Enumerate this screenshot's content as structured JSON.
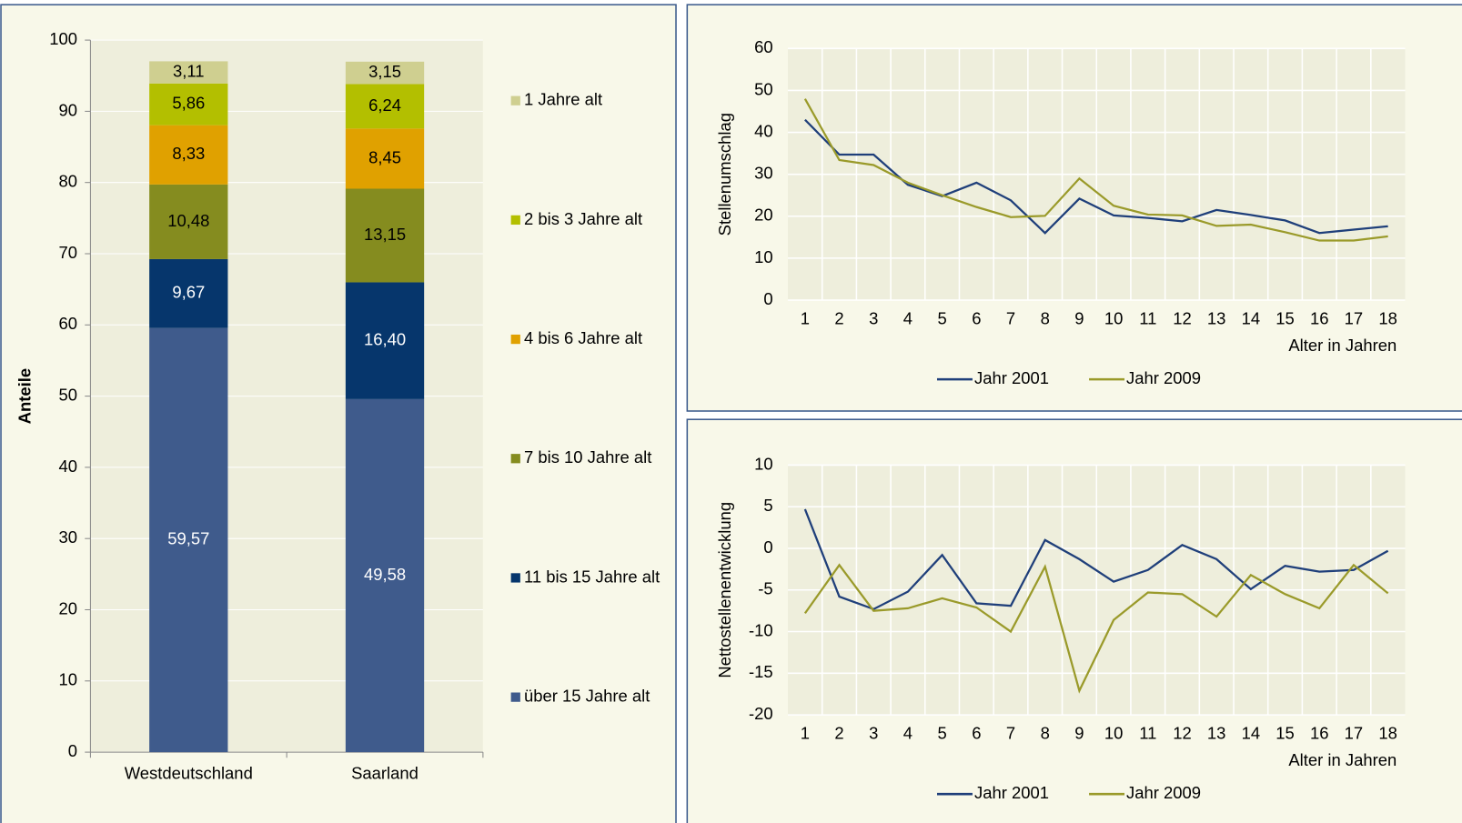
{
  "chart_data": [
    {
      "type": "bar",
      "stacked": true,
      "y_label": "Anteile",
      "categories": [
        "Westdeutschland",
        "Saarland"
      ],
      "series": [
        {
          "name": "über 15 Jahre alt",
          "color": "#3f5b8c",
          "values": [
            59.57,
            49.58
          ],
          "value_labels": [
            "59,57",
            "49,58"
          ]
        },
        {
          "name": "11 bis 15 Jahre alt",
          "color": "#06366c",
          "values": [
            9.67,
            16.4
          ],
          "value_labels": [
            "9,67",
            "16,40"
          ]
        },
        {
          "name": "7 bis 10 Jahre alt",
          "color": "#858c1f",
          "values": [
            10.48,
            13.15
          ],
          "value_labels": [
            "10,48",
            "13,15"
          ]
        },
        {
          "name": "4 bis 6 Jahre alt",
          "color": "#e0a100",
          "values": [
            8.33,
            8.45
          ],
          "value_labels": [
            "8,33",
            "8,45"
          ]
        },
        {
          "name": "2 bis 3 Jahre alt",
          "color": "#b3bf00",
          "values": [
            5.86,
            6.24
          ],
          "value_labels": [
            "5,86",
            "6,24"
          ]
        },
        {
          "name": "1 Jahre alt",
          "color": "#cfcf90",
          "values": [
            3.11,
            3.15
          ],
          "value_labels": [
            "3,11",
            "3,15"
          ]
        }
      ],
      "ylim": [
        0,
        100
      ],
      "yticks": [
        0,
        10,
        20,
        30,
        40,
        50,
        60,
        70,
        80,
        90,
        100
      ],
      "grid": true
    },
    {
      "type": "line",
      "y_label": "Stellenumschlag",
      "x_label": "Alter in Jahren",
      "x": [
        1,
        2,
        3,
        4,
        5,
        6,
        7,
        8,
        9,
        10,
        11,
        12,
        13,
        14,
        15,
        16,
        17,
        18
      ],
      "xlim": [
        0.5,
        18.5
      ],
      "series": [
        {
          "name": "Jahr 2001",
          "color": "#1f3f7a",
          "values": [
            43,
            34.7,
            34.7,
            27.5,
            24.8,
            28,
            23.8,
            16,
            24.2,
            20.2,
            19.6,
            18.8,
            21.5,
            20.3,
            19,
            16,
            16.8,
            17.6
          ]
        },
        {
          "name": "Jahr 2009",
          "color": "#9a9a2a",
          "values": [
            48,
            33.4,
            32.2,
            28,
            25,
            22.2,
            19.8,
            20.1,
            29,
            22.5,
            20.4,
            20.2,
            17.7,
            18,
            16.2,
            14.2,
            14.2,
            15.2
          ]
        }
      ],
      "ylim": [
        0,
        60
      ],
      "yticks": [
        0,
        10,
        20,
        30,
        40,
        50,
        60
      ],
      "grid": true
    },
    {
      "type": "line",
      "y_label": "Nettostellenentwicklung",
      "x_label": "Alter in Jahren",
      "x": [
        1,
        2,
        3,
        4,
        5,
        6,
        7,
        8,
        9,
        10,
        11,
        12,
        13,
        14,
        15,
        16,
        17,
        18
      ],
      "xlim": [
        0.5,
        18.5
      ],
      "series": [
        {
          "name": "Jahr 2001",
          "color": "#1f3f7a",
          "values": [
            4.7,
            -5.8,
            -7.3,
            -5.2,
            -0.8,
            -6.6,
            -6.9,
            1,
            -1.3,
            -4,
            -2.6,
            0.4,
            -1.3,
            -4.9,
            -2.1,
            -2.8,
            -2.6,
            -0.3
          ]
        },
        {
          "name": "Jahr 2009",
          "color": "#9a9a2a",
          "values": [
            -7.8,
            -2,
            -7.5,
            -7.2,
            -6,
            -7.1,
            -10,
            -2.2,
            -17.1,
            -8.6,
            -5.3,
            -5.5,
            -8.2,
            -3.2,
            -5.5,
            -7.2,
            -2,
            -5.4
          ]
        }
      ],
      "ylim": [
        -20,
        10
      ],
      "yticks": [
        -20,
        -15,
        -10,
        -5,
        0,
        5,
        10
      ],
      "grid": true
    }
  ]
}
